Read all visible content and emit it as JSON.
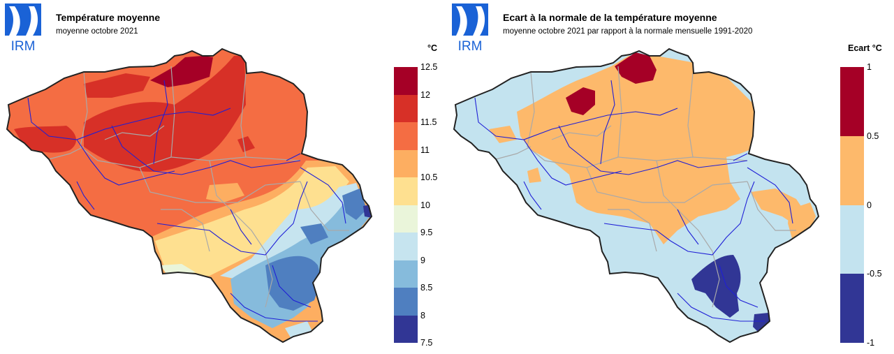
{
  "left_panel": {
    "logo_text": "IRM",
    "title": "Température moyenne",
    "subtitle": "moyenne octobre 2021",
    "unit": "°C",
    "legend_ticks": [
      "12.5",
      "12",
      "11.5",
      "11",
      "10.5",
      "10",
      "9.5",
      "9",
      "8.5",
      "8",
      "7.5"
    ],
    "legend_colors": [
      "#a50026",
      "#d73027",
      "#f46d43",
      "#fdae61",
      "#fee090",
      "#eaf5da",
      "#c6e4ef",
      "#86bbdc",
      "#4f7fc0",
      "#313695"
    ]
  },
  "right_panel": {
    "logo_text": "IRM",
    "title": "Ecart à la normale de la température moyenne",
    "subtitle": "moyenne octobre 2021 par rapport à la normale mensuelle 1991-2020",
    "unit": "Ecart °C",
    "legend_ticks": [
      "1",
      "0.5",
      "0",
      "-0.5",
      "-1"
    ],
    "legend_colors": [
      "#a50026",
      "#fdb96b",
      "#c3e3ef",
      "#313695"
    ]
  },
  "colors": {
    "logo_blue": "#1a62d6",
    "border": "#222222",
    "rivers": "#1f1fd6",
    "provinces": "#a9a9a9"
  }
}
